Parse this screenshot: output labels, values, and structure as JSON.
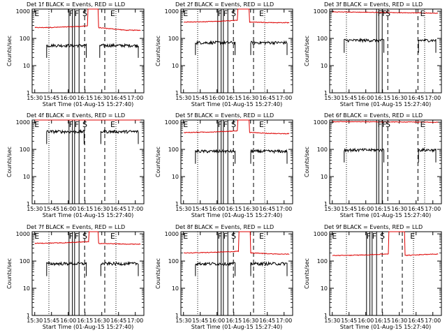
{
  "chart_data": {
    "type": "line",
    "layout": "3x3 grid",
    "common": {
      "xlabel": "Start Time (01-Aug-15 15:27:40)",
      "ylabel": "Counts/sec",
      "x_ticks": [
        "15:30",
        "15:45",
        "16:00",
        "16:15",
        "16:30",
        "16:45",
        "17:00"
      ],
      "x_range_min": [
        0,
        100
      ],
      "y_scale": "log",
      "y_range": [
        1,
        1200
      ],
      "y_ticks": [
        "1",
        "10",
        "100",
        "1000"
      ],
      "series_colors": {
        "events": "#000000",
        "lld": "#dd0000"
      }
    },
    "panels": [
      {
        "title": "Det 1f BLACK = Events, RED = LLD",
        "events_level": 55,
        "lld_level": 250,
        "lld_end_level": 200,
        "lld_rise_min": 50,
        "lld_fall_min": 59,
        "events_gap_min": [
          49,
          60
        ],
        "solid_lines_min": [
          33,
          36,
          38,
          42
        ],
        "dashed_lines_min": [
          47,
          65
        ],
        "dotted_lines_min": [
          15,
          75
        ],
        "letters": [
          {
            "text": "E",
            "x_min": 2
          },
          {
            "text": "F",
            "x_min": 33
          },
          {
            "text": "F",
            "x_min": 38
          },
          {
            "text": "S",
            "x_min": 45
          },
          {
            "text": "E",
            "x_min": 70
          }
        ]
      },
      {
        "title": "Det 2f BLACK = Events, RED = LLD",
        "events_level": 70,
        "lld_level": 400,
        "lld_end_level": 380,
        "lld_rise_min": 51,
        "lld_fall_min": 61,
        "events_gap_min": [
          49,
          62
        ],
        "solid_lines_min": [
          33,
          36,
          38,
          42
        ],
        "dashed_lines_min": [
          47,
          65
        ],
        "dotted_lines_min": [
          15,
          75
        ],
        "letters": [
          {
            "text": "E",
            "x_min": 2
          },
          {
            "text": "F",
            "x_min": 33
          },
          {
            "text": "F",
            "x_min": 38
          },
          {
            "text": "S",
            "x_min": 45
          },
          {
            "text": "E",
            "x_min": 70
          }
        ]
      },
      {
        "title": "Det 3f BLACK = Events, RED = LLD",
        "events_level": 85,
        "lld_level": 950,
        "lld_end_level": 850,
        "lld_rise_min": 0,
        "lld_fall_min": 0,
        "events_gap_min": [
          49,
          79
        ],
        "solid_lines_min": [
          42,
          44,
          47
        ],
        "dashed_lines_min": [
          52,
          79
        ],
        "dotted_lines_min": [
          15,
          85
        ],
        "letters": [
          {
            "text": "F",
            "x_min": 43
          },
          {
            "text": "F",
            "x_min": 47
          },
          {
            "text": "S",
            "x_min": 50
          },
          {
            "text": "E",
            "x_min": 81
          }
        ]
      },
      {
        "title": "Det 4f BLACK = Events, RED = LLD",
        "events_level": 450,
        "lld_level": 1750,
        "lld_end_level": 1700,
        "lld_rise_min": 51,
        "lld_fall_min": 59,
        "events_gap_min": [
          47,
          61
        ],
        "solid_lines_min": [
          33,
          36,
          38,
          42
        ],
        "dashed_lines_min": [
          47,
          65
        ],
        "dotted_lines_min": [
          15,
          75
        ],
        "letters": [
          {
            "text": "E",
            "x_min": 2
          },
          {
            "text": "F",
            "x_min": 33
          },
          {
            "text": "F",
            "x_min": 38
          },
          {
            "text": "S",
            "x_min": 45
          },
          {
            "text": "E",
            "x_min": 70
          }
        ]
      },
      {
        "title": "Det 5f BLACK = Events, RED = LLD",
        "events_level": 85,
        "lld_level": 420,
        "lld_end_level": 380,
        "lld_rise_min": 51,
        "lld_fall_min": 61,
        "events_gap_min": [
          49,
          62
        ],
        "solid_lines_min": [
          33,
          36,
          38,
          42
        ],
        "dashed_lines_min": [
          47,
          65
        ],
        "dotted_lines_min": [
          15,
          75
        ],
        "letters": [
          {
            "text": "E",
            "x_min": 2
          },
          {
            "text": "F",
            "x_min": 33
          },
          {
            "text": "F",
            "x_min": 38
          },
          {
            "text": "S",
            "x_min": 45
          },
          {
            "text": "E",
            "x_min": 70
          }
        ]
      },
      {
        "title": "Det 6f BLACK = Events, RED = LLD",
        "events_level": 95,
        "lld_level": 1050,
        "lld_end_level": 1000,
        "lld_rise_min": 0,
        "lld_fall_min": 0,
        "events_gap_min": [
          49,
          79
        ],
        "solid_lines_min": [
          42,
          44,
          47
        ],
        "dashed_lines_min": [
          52,
          79
        ],
        "dotted_lines_min": [
          15,
          85
        ],
        "letters": [
          {
            "text": "F",
            "x_min": 43
          },
          {
            "text": "F",
            "x_min": 47
          },
          {
            "text": "S",
            "x_min": 50
          },
          {
            "text": "E",
            "x_min": 81
          }
        ]
      },
      {
        "title": "Det 7f BLACK = Events, RED = LLD",
        "events_level": 80,
        "lld_level": 450,
        "lld_end_level": 420,
        "lld_rise_min": 51,
        "lld_fall_min": 59,
        "events_gap_min": [
          49,
          61
        ],
        "solid_lines_min": [
          33,
          36,
          38,
          42
        ],
        "dashed_lines_min": [
          47,
          65
        ],
        "dotted_lines_min": [
          15,
          75
        ],
        "letters": [
          {
            "text": "E",
            "x_min": 2
          },
          {
            "text": "F",
            "x_min": 33
          },
          {
            "text": "F",
            "x_min": 38
          },
          {
            "text": "S",
            "x_min": 45
          },
          {
            "text": "E",
            "x_min": 70
          }
        ]
      },
      {
        "title": "Det 8f BLACK = Events, RED = LLD",
        "events_level": 80,
        "lld_level": 200,
        "lld_end_level": 180,
        "lld_rise_min": 52,
        "lld_fall_min": 62,
        "events_gap_min": [
          49,
          62
        ],
        "solid_lines_min": [
          33,
          36,
          38,
          42
        ],
        "dashed_lines_min": [
          47,
          65
        ],
        "dotted_lines_min": [
          15,
          75
        ],
        "letters": [
          {
            "text": "E",
            "x_min": 2
          },
          {
            "text": "F",
            "x_min": 33
          },
          {
            "text": "F",
            "x_min": 38
          },
          {
            "text": "S",
            "x_min": 45
          },
          {
            "text": "E",
            "x_min": 70
          }
        ]
      },
      {
        "title": "Det 9f BLACK = Events, RED = LLD",
        "events_level": 0,
        "lld_level": 160,
        "lld_end_level": 180,
        "lld_rise_min": 53,
        "lld_fall_min": 67,
        "events_gap_min": [
          0,
          0
        ],
        "solid_lines_min": [
          33,
          36,
          38,
          42
        ],
        "dashed_lines_min": [
          47,
          65
        ],
        "dotted_lines_min": [
          15,
          75
        ],
        "letters": [
          {
            "text": "E",
            "x_min": 2
          },
          {
            "text": "F",
            "x_min": 33
          },
          {
            "text": "F",
            "x_min": 38
          },
          {
            "text": "S",
            "x_min": 45
          },
          {
            "text": "E",
            "x_min": 72
          }
        ]
      }
    ]
  }
}
